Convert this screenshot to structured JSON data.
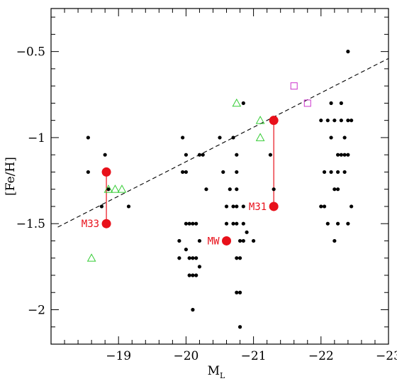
{
  "chart_data": {
    "type": "scatter",
    "xlabel_main": "M",
    "xlabel_sub": "L",
    "ylabel": "[Fe/H]",
    "xlim": [
      -18,
      -23
    ],
    "ylim": [
      -2.2,
      -0.25
    ],
    "x_ticks": [
      -19,
      -20,
      -21,
      -22,
      -23
    ],
    "x_tick_labels": [
      "−19",
      "−20",
      "−21",
      "−22",
      "−23"
    ],
    "y_ticks": [
      -0.5,
      -1,
      -1.5,
      -2
    ],
    "y_tick_labels": [
      "−0.5",
      "−1",
      "−1.5",
      "−2"
    ],
    "colors": {
      "dots": "#000000",
      "highlight": "#e8101a",
      "triangles": "#33cc33",
      "squares": "#cc33cc",
      "fit_line": "#000000"
    },
    "fit_line": {
      "style": "dashed",
      "points": [
        [
          -18.1,
          -1.52
        ],
        [
          -23.1,
          -0.52
        ]
      ]
    },
    "black_dots": [
      [
        -18.55,
        -1.0
      ],
      [
        -18.55,
        -1.2
      ],
      [
        -18.75,
        -1.4
      ],
      [
        -18.8,
        -1.1
      ],
      [
        -18.85,
        -1.3
      ],
      [
        -19.15,
        -1.4
      ],
      [
        -19.95,
        -1.0
      ],
      [
        -19.95,
        -1.2
      ],
      [
        -20.0,
        -1.2
      ],
      [
        -20.0,
        -1.1
      ],
      [
        -20.2,
        -1.1
      ],
      [
        -20.25,
        -1.1
      ],
      [
        -20.3,
        -1.3
      ],
      [
        -20.0,
        -1.5
      ],
      [
        -20.05,
        -1.5
      ],
      [
        -20.1,
        -1.5
      ],
      [
        -20.15,
        -1.5
      ],
      [
        -19.9,
        -1.6
      ],
      [
        -19.9,
        -1.7
      ],
      [
        -20.0,
        -1.65
      ],
      [
        -20.05,
        -1.7
      ],
      [
        -20.1,
        -1.7
      ],
      [
        -20.15,
        -1.7
      ],
      [
        -20.2,
        -1.6
      ],
      [
        -20.2,
        -1.75
      ],
      [
        -20.05,
        -1.8
      ],
      [
        -20.1,
        -1.8
      ],
      [
        -20.15,
        -1.8
      ],
      [
        -20.1,
        -2.0
      ],
      [
        -20.5,
        -1.0
      ],
      [
        -20.55,
        -1.2
      ],
      [
        -20.6,
        -1.4
      ],
      [
        -20.6,
        -1.5
      ],
      [
        -20.65,
        -1.3
      ],
      [
        -20.7,
        -1.4
      ],
      [
        -20.7,
        -1.5
      ],
      [
        -20.7,
        -1.0
      ],
      [
        -20.75,
        -1.1
      ],
      [
        -20.75,
        -1.2
      ],
      [
        -20.75,
        -1.3
      ],
      [
        -20.75,
        -1.4
      ],
      [
        -20.75,
        -1.5
      ],
      [
        -20.75,
        -1.7
      ],
      [
        -20.8,
        -1.6
      ],
      [
        -20.8,
        -1.7
      ],
      [
        -20.85,
        -1.5
      ],
      [
        -20.85,
        -1.6
      ],
      [
        -20.75,
        -1.9
      ],
      [
        -20.8,
        -1.9
      ],
      [
        -20.8,
        -2.1
      ],
      [
        -20.85,
        -1.4
      ],
      [
        -20.9,
        -1.55
      ],
      [
        -21.0,
        -1.6
      ],
      [
        -21.25,
        -1.1
      ],
      [
        -21.3,
        -1.3
      ],
      [
        -20.85,
        -0.8
      ],
      [
        -22.0,
        -1.4
      ],
      [
        -22.05,
        -1.4
      ],
      [
        -22.0,
        -0.9
      ],
      [
        -22.1,
        -0.9
      ],
      [
        -22.05,
        -1.2
      ],
      [
        -22.1,
        -1.5
      ],
      [
        -22.15,
        -1.2
      ],
      [
        -22.15,
        -1.0
      ],
      [
        -22.15,
        -0.8
      ],
      [
        -22.2,
        -0.9
      ],
      [
        -22.2,
        -1.3
      ],
      [
        -22.2,
        -1.6
      ],
      [
        -22.25,
        -1.1
      ],
      [
        -22.25,
        -1.2
      ],
      [
        -22.25,
        -1.3
      ],
      [
        -22.25,
        -1.5
      ],
      [
        -22.3,
        -0.8
      ],
      [
        -22.3,
        -0.9
      ],
      [
        -22.3,
        -1.1
      ],
      [
        -22.35,
        -1.0
      ],
      [
        -22.35,
        -1.1
      ],
      [
        -22.35,
        -1.2
      ],
      [
        -22.4,
        -0.9
      ],
      [
        -22.4,
        -1.1
      ],
      [
        -22.4,
        -1.5
      ],
      [
        -22.4,
        -0.5
      ],
      [
        -22.45,
        -0.9
      ],
      [
        -22.45,
        -1.4
      ]
    ],
    "triangles": [
      [
        -18.6,
        -1.7
      ],
      [
        -18.85,
        -1.3
      ],
      [
        -18.95,
        -1.3
      ],
      [
        -19.05,
        -1.3
      ],
      [
        -20.75,
        -0.8
      ],
      [
        -21.1,
        -0.9
      ],
      [
        -21.1,
        -1.0
      ]
    ],
    "squares": [
      [
        -21.6,
        -0.7
      ],
      [
        -21.8,
        -0.8
      ]
    ],
    "highlights": [
      {
        "label": "M33",
        "x": -18.82,
        "y": -1.5,
        "label_side": "left"
      },
      {
        "label": "",
        "x": -18.82,
        "y": -1.2,
        "label_side": "none"
      },
      {
        "label": "MW",
        "x": -20.6,
        "y": -1.6,
        "label_side": "left"
      },
      {
        "label": "M31",
        "x": -21.3,
        "y": -1.4,
        "label_side": "left"
      },
      {
        "label": "",
        "x": -21.3,
        "y": -0.9,
        "label_side": "none"
      }
    ],
    "connectors": [
      [
        [
          -18.82,
          -1.5
        ],
        [
          -18.82,
          -1.2
        ]
      ],
      [
        [
          -21.3,
          -1.4
        ],
        [
          -21.3,
          -0.9
        ]
      ]
    ]
  }
}
